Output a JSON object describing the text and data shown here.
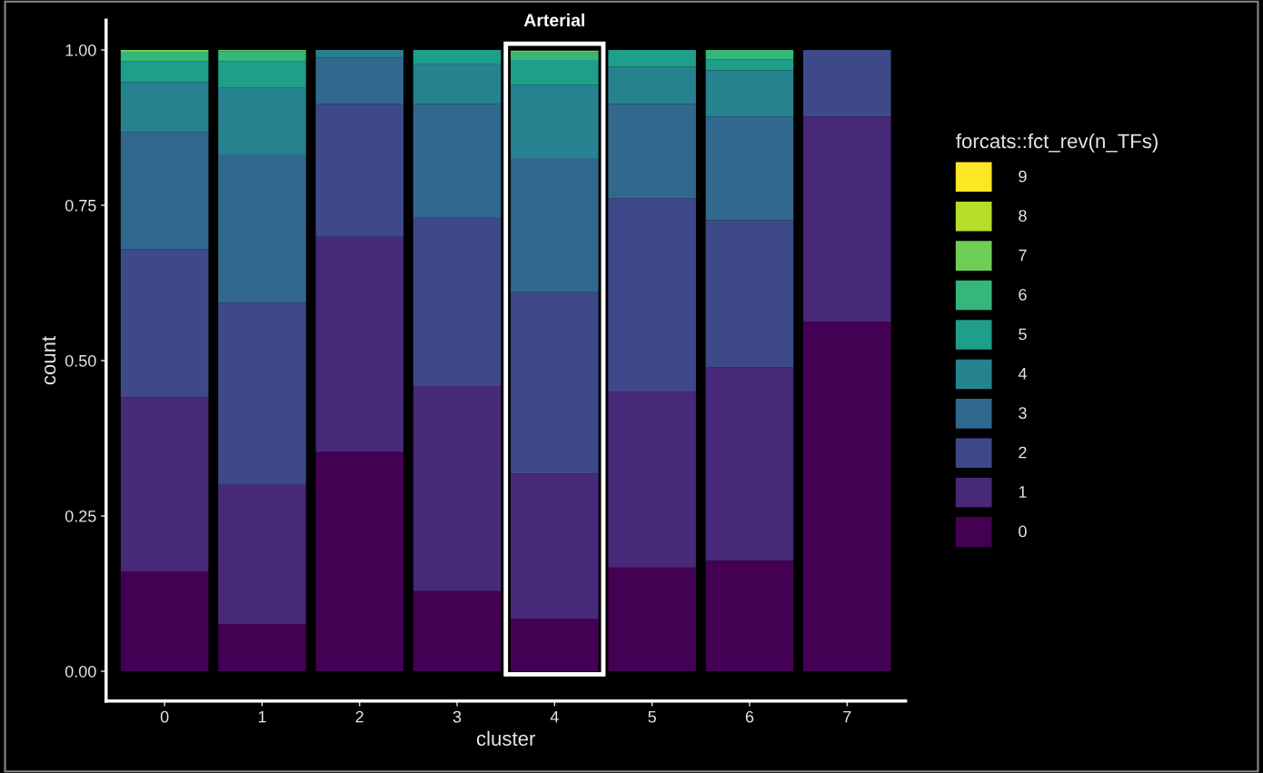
{
  "chart_data": {
    "type": "bar",
    "stacked": true,
    "xlabel": "cluster",
    "ylabel": "count",
    "legend_title": "forcats::fct_rev(n_TFs)",
    "categories": [
      "0",
      "1",
      "2",
      "3",
      "4",
      "5",
      "6",
      "7"
    ],
    "series": [
      {
        "name": "0",
        "color": "#440154",
        "values": [
          0.161,
          0.076,
          0.353,
          0.129,
          0.085,
          0.167,
          0.178,
          0.563
        ]
      },
      {
        "name": "1",
        "color": "#482878",
        "values": [
          0.28,
          0.224,
          0.346,
          0.33,
          0.233,
          0.283,
          0.311,
          0.33
        ]
      },
      {
        "name": "2",
        "color": "#3e4989",
        "values": [
          0.238,
          0.293,
          0.214,
          0.272,
          0.292,
          0.311,
          0.237,
          0.107
        ]
      },
      {
        "name": "3",
        "color": "#31688e",
        "values": [
          0.189,
          0.239,
          0.075,
          0.182,
          0.216,
          0.152,
          0.167,
          0
        ]
      },
      {
        "name": "4",
        "color": "#26828e",
        "values": [
          0.08,
          0.107,
          0.012,
          0.064,
          0.118,
          0.06,
          0.074,
          0
        ]
      },
      {
        "name": "5",
        "color": "#1f9e89",
        "values": [
          0.034,
          0.043,
          0,
          0.023,
          0.04,
          0.027,
          0.018,
          0
        ]
      },
      {
        "name": "6",
        "color": "#35b779",
        "values": [
          0.015,
          0.016,
          0,
          0,
          0.012,
          0,
          0.015,
          0
        ]
      },
      {
        "name": "7",
        "color": "#6ece58",
        "values": [
          0.003,
          0.002,
          0,
          0,
          0.003,
          0,
          0,
          0
        ]
      },
      {
        "name": "8",
        "color": "#b5de2b",
        "values": [
          0,
          0,
          0,
          0,
          0,
          0,
          0,
          0
        ]
      },
      {
        "name": "9",
        "color": "#fde725",
        "values": [
          0,
          0,
          0,
          0,
          0,
          0,
          0,
          0
        ]
      }
    ],
    "ylim": [
      -0.048,
      1.048
    ],
    "yticks": [
      {
        "value": 0,
        "label": "0.00"
      },
      {
        "value": 0.25,
        "label": "0.25"
      },
      {
        "value": 0.5,
        "label": "0.50"
      },
      {
        "value": 0.75,
        "label": "0.75"
      },
      {
        "value": 1,
        "label": "1.00"
      }
    ],
    "annotations": [
      {
        "text": "Arterial",
        "x": "4",
        "y": 1
      }
    ],
    "grid": false,
    "legend": "right"
  }
}
